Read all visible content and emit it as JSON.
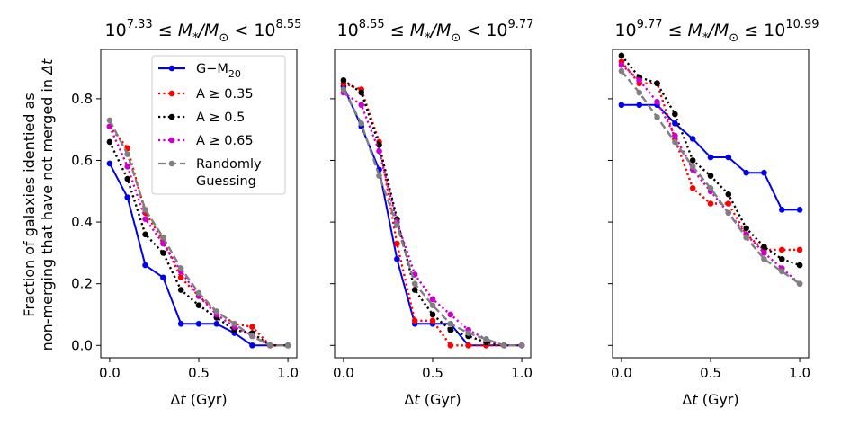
{
  "figure": {
    "ylabel_line1": "Fraction of galaxies identied as",
    "ylabel_line2": "non-merging that have not merged in ",
    "ylabel_symbol": "Δt"
  },
  "chart_data": [
    {
      "type": "line",
      "title": {
        "base1": "10",
        "exp1": "7.33",
        "mid": " ≤ M",
        "sub": "*",
        "mid2": "/M",
        "sun": "⊙",
        "op": " < ",
        "base2": "10",
        "exp2": "8.55"
      },
      "xlabel": "Δt (Gyr)",
      "xlim": [
        -0.05,
        1.05
      ],
      "ylim": [
        -0.04,
        0.96
      ],
      "xticks": [
        "0.0",
        "0.5",
        "1.0"
      ],
      "yticks": [
        "0.0",
        "0.2",
        "0.4",
        "0.6",
        "0.8"
      ],
      "x": [
        0.0,
        0.1,
        0.2,
        0.3,
        0.4,
        0.5,
        0.6,
        0.7,
        0.8,
        0.9,
        1.0
      ],
      "series": [
        {
          "name": "G−M20",
          "color": "#0000ee",
          "style": "solid",
          "values": [
            0.59,
            0.48,
            0.26,
            0.22,
            0.07,
            0.07,
            0.07,
            0.04,
            0.0,
            0.0,
            0.0
          ]
        },
        {
          "name": "A ≥ 0.35",
          "color": "#ff0000",
          "style": "dotted",
          "values": [
            0.71,
            0.64,
            0.43,
            0.34,
            0.22,
            0.16,
            0.11,
            0.07,
            0.06,
            0.0,
            0.0
          ]
        },
        {
          "name": "A ≥ 0.5",
          "color": "#000000",
          "style": "dotted",
          "values": [
            0.66,
            0.54,
            0.36,
            0.3,
            0.18,
            0.13,
            0.09,
            0.05,
            0.04,
            0.0,
            0.0
          ]
        },
        {
          "name": "A ≥ 0.65",
          "color": "#cc00cc",
          "style": "dotted",
          "values": [
            0.71,
            0.58,
            0.41,
            0.33,
            0.24,
            0.16,
            0.1,
            0.06,
            0.03,
            0.0,
            0.0
          ]
        },
        {
          "name": "Randomly Guessing",
          "color": "#808080",
          "style": "dashed",
          "values": [
            0.73,
            0.62,
            0.44,
            0.35,
            0.25,
            0.17,
            0.11,
            0.07,
            0.03,
            0.0,
            0.0
          ]
        }
      ]
    },
    {
      "type": "line",
      "title": {
        "base1": "10",
        "exp1": "8.55",
        "mid": " ≤ M",
        "sub": "*",
        "mid2": "/M",
        "sun": "⊙",
        "op": " < ",
        "base2": "10",
        "exp2": "9.77"
      },
      "xlabel": "Δt (Gyr)",
      "xlim": [
        -0.05,
        1.05
      ],
      "ylim": [
        -0.04,
        0.96
      ],
      "xticks": [
        "0.0",
        "0.5",
        "1.0"
      ],
      "yticks": [],
      "x": [
        0.0,
        0.1,
        0.2,
        0.3,
        0.4,
        0.5,
        0.6,
        0.7,
        0.8,
        0.9,
        1.0
      ],
      "series": [
        {
          "name": "G−M20",
          "color": "#0000ee",
          "style": "solid",
          "values": [
            0.84,
            0.71,
            0.57,
            0.28,
            0.07,
            0.07,
            0.07,
            0.0,
            0.0,
            0.0,
            0.0
          ]
        },
        {
          "name": "A ≥ 0.35",
          "color": "#ff0000",
          "style": "dotted",
          "values": [
            0.85,
            0.83,
            0.66,
            0.33,
            0.08,
            0.08,
            0.0,
            0.0,
            0.0,
            0.0,
            0.0
          ]
        },
        {
          "name": "A ≥ 0.5",
          "color": "#000000",
          "style": "dotted",
          "values": [
            0.86,
            0.82,
            0.65,
            0.41,
            0.18,
            0.1,
            0.05,
            0.03,
            0.01,
            0.0,
            0.0
          ]
        },
        {
          "name": "A ≥ 0.65",
          "color": "#cc00cc",
          "style": "dotted",
          "values": [
            0.82,
            0.78,
            0.63,
            0.4,
            0.23,
            0.15,
            0.1,
            0.05,
            0.02,
            0.0,
            0.0
          ]
        },
        {
          "name": "Randomly Guessing",
          "color": "#808080",
          "style": "dashed",
          "values": [
            0.83,
            0.72,
            0.55,
            0.39,
            0.2,
            0.13,
            0.07,
            0.04,
            0.02,
            0.0,
            0.0
          ]
        }
      ]
    },
    {
      "type": "line",
      "title": {
        "base1": "10",
        "exp1": "9.77",
        "mid": " ≤ M",
        "sub": "*",
        "mid2": "/M",
        "sun": "⊙",
        "op": " ≤ ",
        "base2": "10",
        "exp2": "10.99"
      },
      "xlabel": "Δt (Gyr)",
      "xlim": [
        -0.05,
        1.05
      ],
      "ylim": [
        -0.04,
        0.96
      ],
      "xticks": [
        "0.0",
        "0.5",
        "1.0"
      ],
      "yticks": [],
      "x": [
        0.0,
        0.1,
        0.2,
        0.3,
        0.4,
        0.5,
        0.6,
        0.7,
        0.8,
        0.9,
        1.0
      ],
      "series": [
        {
          "name": "G−M20",
          "color": "#0000ee",
          "style": "solid",
          "values": [
            0.78,
            0.78,
            0.78,
            0.72,
            0.67,
            0.61,
            0.61,
            0.56,
            0.56,
            0.44,
            0.44
          ]
        },
        {
          "name": "A ≥ 0.35",
          "color": "#ff0000",
          "style": "dotted",
          "values": [
            0.92,
            0.85,
            0.85,
            0.67,
            0.51,
            0.46,
            0.46,
            0.36,
            0.31,
            0.31,
            0.31
          ]
        },
        {
          "name": "A ≥ 0.5",
          "color": "#000000",
          "style": "dotted",
          "values": [
            0.94,
            0.87,
            0.85,
            0.75,
            0.6,
            0.55,
            0.49,
            0.38,
            0.32,
            0.28,
            0.26
          ]
        },
        {
          "name": "A ≥ 0.65",
          "color": "#cc00cc",
          "style": "dotted",
          "values": [
            0.91,
            0.86,
            0.79,
            0.68,
            0.57,
            0.5,
            0.43,
            0.36,
            0.3,
            0.25,
            0.2
          ]
        },
        {
          "name": "Randomly Guessing",
          "color": "#808080",
          "style": "dashed",
          "values": [
            0.89,
            0.82,
            0.74,
            0.66,
            0.58,
            0.51,
            0.43,
            0.35,
            0.28,
            0.24,
            0.2
          ]
        }
      ]
    }
  ],
  "legend": {
    "entries": [
      {
        "base": "G−M",
        "sub": "20",
        "color": "#0000ee",
        "style": "solid"
      },
      {
        "base": "A ≥ 0.35",
        "sub": "",
        "color": "#ff0000",
        "style": "dotted"
      },
      {
        "base": "A ≥ 0.5",
        "sub": "",
        "color": "#000000",
        "style": "dotted"
      },
      {
        "base": "A ≥ 0.65",
        "sub": "",
        "color": "#cc00cc",
        "style": "dotted"
      },
      {
        "base": "Randomly",
        "base2": "Guessing",
        "sub": "",
        "color": "#808080",
        "style": "dashed"
      }
    ]
  }
}
